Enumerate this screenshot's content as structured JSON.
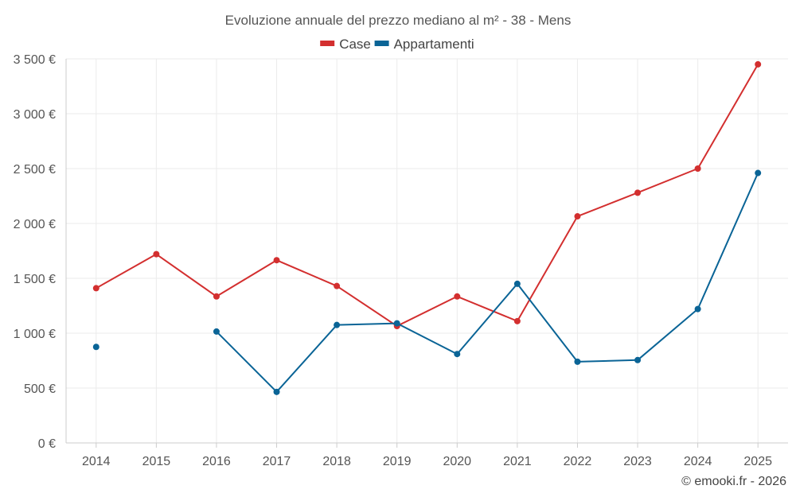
{
  "chart_data": {
    "type": "line",
    "title": "Evoluzione annuale del prezzo mediano al m² - 38 - Mens",
    "categories": [
      "2014",
      "2015",
      "2016",
      "2017",
      "2018",
      "2019",
      "2020",
      "2021",
      "2022",
      "2023",
      "2024",
      "2025"
    ],
    "ylim": [
      0,
      3500
    ],
    "yticks": [
      0,
      500,
      1000,
      1500,
      2000,
      2500,
      3000,
      3500
    ],
    "ytick_labels": [
      "0 €",
      "500 €",
      "1 000 €",
      "1 500 €",
      "2 000 €",
      "2 500 €",
      "3 000 €",
      "3 500 €"
    ],
    "grid": true,
    "legend_position": "top-center",
    "series": [
      {
        "name": "Case",
        "color": "#d32f2f",
        "values": [
          1410,
          1720,
          1335,
          1665,
          1430,
          1065,
          1335,
          1110,
          2065,
          2280,
          2500,
          3450
        ]
      },
      {
        "name": "Appartamenti",
        "color": "#0a6496",
        "values": [
          875,
          null,
          1015,
          465,
          1075,
          1090,
          810,
          1450,
          740,
          755,
          1220,
          2460
        ]
      }
    ]
  },
  "credit": "© emooki.fr - 2026"
}
